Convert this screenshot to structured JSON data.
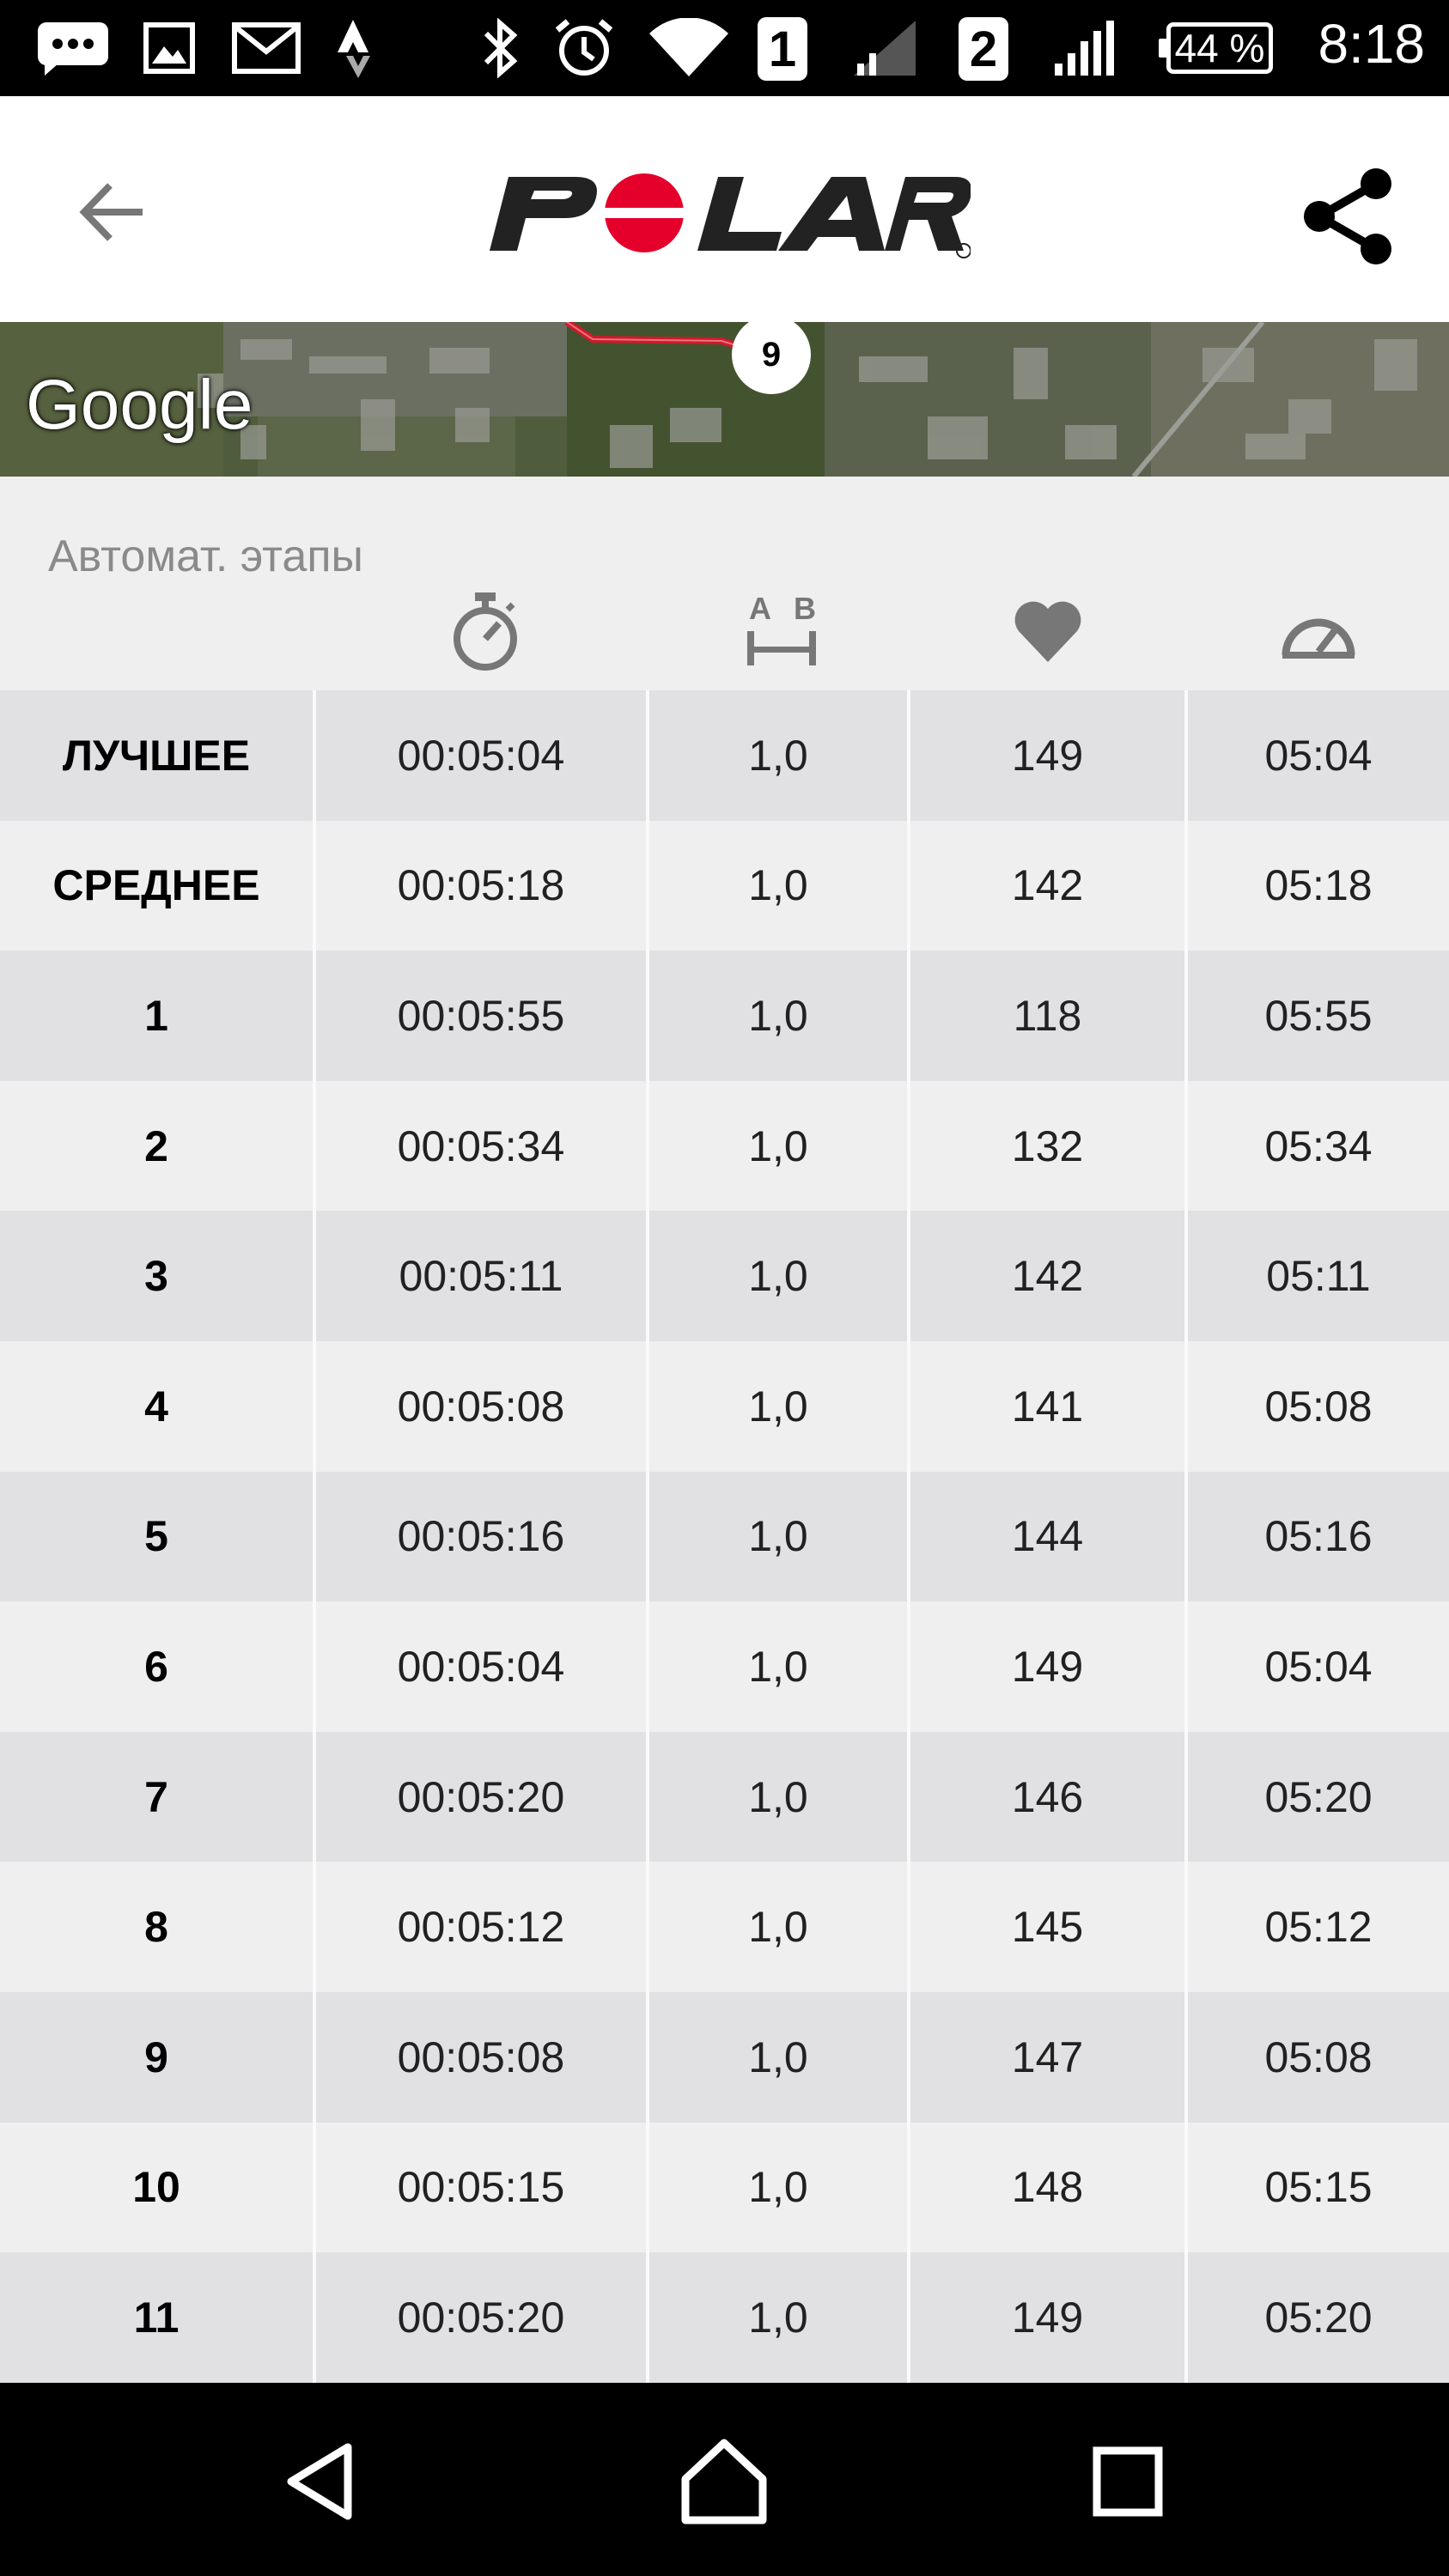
{
  "status_bar": {
    "time": "8:18",
    "battery": "44 %",
    "sim1": "1",
    "sim2": "2",
    "icons": [
      "chat-icon",
      "gallery-icon",
      "mail-icon",
      "strava-icon",
      "bluetooth-icon",
      "alarm-icon",
      "wifi-icon",
      "signal-icon",
      "signal-icon"
    ]
  },
  "app_bar": {
    "logo_text": "POLAR",
    "back_icon": "arrow-left-icon",
    "share_icon": "share-icon"
  },
  "map": {
    "provider_label": "Google",
    "marker_label": "9"
  },
  "laps": {
    "title": "Автомат. этапы",
    "column_icons": [
      "stopwatch-icon",
      "distance-icon",
      "heart-icon",
      "speedometer-icon"
    ],
    "distance_icon_letters": [
      "A",
      "B"
    ],
    "rows": [
      {
        "label": "ЛУЧШЕЕ",
        "time": "00:05:04",
        "distance": "1,0",
        "hr": "149",
        "pace": "05:04"
      },
      {
        "label": "СРЕДНЕЕ",
        "time": "00:05:18",
        "distance": "1,0",
        "hr": "142",
        "pace": "05:18"
      },
      {
        "label": "1",
        "time": "00:05:55",
        "distance": "1,0",
        "hr": "118",
        "pace": "05:55"
      },
      {
        "label": "2",
        "time": "00:05:34",
        "distance": "1,0",
        "hr": "132",
        "pace": "05:34"
      },
      {
        "label": "3",
        "time": "00:05:11",
        "distance": "1,0",
        "hr": "142",
        "pace": "05:11"
      },
      {
        "label": "4",
        "time": "00:05:08",
        "distance": "1,0",
        "hr": "141",
        "pace": "05:08"
      },
      {
        "label": "5",
        "time": "00:05:16",
        "distance": "1,0",
        "hr": "144",
        "pace": "05:16"
      },
      {
        "label": "6",
        "time": "00:05:04",
        "distance": "1,0",
        "hr": "149",
        "pace": "05:04"
      },
      {
        "label": "7",
        "time": "00:05:20",
        "distance": "1,0",
        "hr": "146",
        "pace": "05:20"
      },
      {
        "label": "8",
        "time": "00:05:12",
        "distance": "1,0",
        "hr": "145",
        "pace": "05:12"
      },
      {
        "label": "9",
        "time": "00:05:08",
        "distance": "1,0",
        "hr": "147",
        "pace": "05:08"
      },
      {
        "label": "10",
        "time": "00:05:15",
        "distance": "1,0",
        "hr": "148",
        "pace": "05:15"
      },
      {
        "label": "11",
        "time": "00:05:20",
        "distance": "1,0",
        "hr": "149",
        "pace": "05:20"
      }
    ]
  },
  "nav_bar": {
    "icons": [
      "back-triangle-icon",
      "home-icon",
      "recents-icon"
    ]
  },
  "colors": {
    "brand_red": "#e4002b",
    "row_dark": "#e1e1e3",
    "row_light": "#efefef",
    "route_red": "#d0192b"
  }
}
